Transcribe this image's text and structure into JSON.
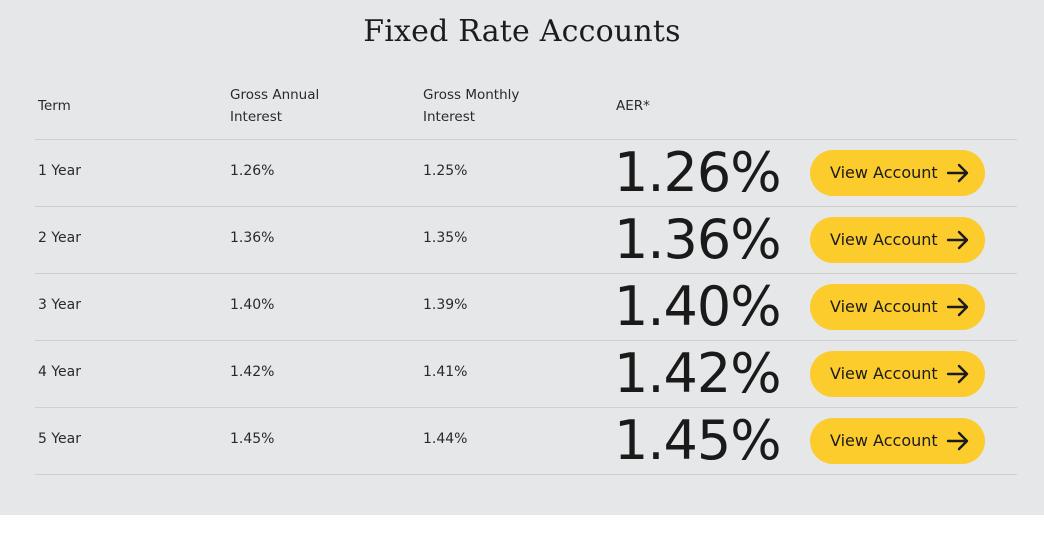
{
  "title": "Fixed Rate Accounts",
  "headers": {
    "term": "Term",
    "annual_line1": "Gross Annual",
    "annual_line2": "Interest",
    "monthly_line1": "Gross Monthly",
    "monthly_line2": "Interest",
    "aer": "AER*"
  },
  "rows": [
    {
      "term": "1 Year",
      "annual": "1.26%",
      "monthly": "1.25%",
      "aer": "1.26%",
      "button": "View Account"
    },
    {
      "term": "2 Year",
      "annual": "1.36%",
      "monthly": "1.35%",
      "aer": "1.36%",
      "button": "View Account"
    },
    {
      "term": "3 Year",
      "annual": "1.40%",
      "monthly": "1.39%",
      "aer": "1.40%",
      "button": "View Account"
    },
    {
      "term": "4 Year",
      "annual": "1.42%",
      "monthly": "1.41%",
      "aer": "1.42%",
      "button": "View Account"
    },
    {
      "term": "5 Year",
      "annual": "1.45%",
      "monthly": "1.44%",
      "aer": "1.45%",
      "button": "View Account"
    }
  ],
  "colors": {
    "panel_background": "#e6e7e8",
    "button_background": "#fccb2c",
    "divider": "#cfd0d2"
  },
  "icons": {
    "button_icon": "arrow-right-icon"
  }
}
